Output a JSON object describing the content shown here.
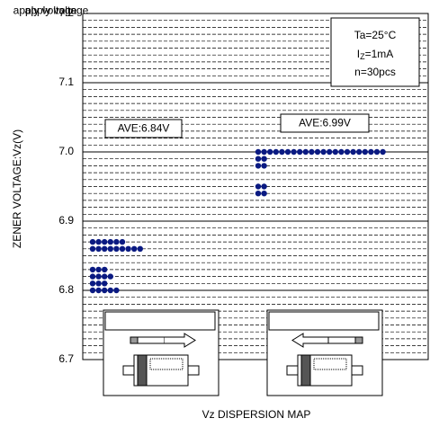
{
  "chart_data": {
    "type": "dotplot",
    "x_label": "Vz DISPERSION MAP",
    "y_label": "ZENER VOLTAGE:Vz(V)",
    "ylim": [
      6.7,
      7.2
    ],
    "yticks": [
      6.7,
      6.8,
      6.9,
      {
        "value": 7.0,
        "label": "7.0"
      },
      7.1,
      7.2
    ],
    "grid": true,
    "minor_grid": 0.01,
    "conditions": {
      "ta": "Ta=25°C",
      "iz": [
        "I",
        "Z",
        "=1mA"
      ],
      "n": "n=30pcs"
    },
    "series": [
      {
        "name": "AVE:6.84V",
        "color": "#0a1a82",
        "diagram": "apply voltage",
        "values": [
          6.87,
          6.87,
          6.87,
          6.87,
          6.87,
          6.87,
          6.86,
          6.86,
          6.86,
          6.86,
          6.86,
          6.86,
          6.86,
          6.86,
          6.86,
          6.83,
          6.83,
          6.83,
          6.82,
          6.82,
          6.82,
          6.82,
          6.81,
          6.81,
          6.81,
          6.8,
          6.8,
          6.8,
          6.8,
          6.8
        ]
      },
      {
        "name": "AVE:6.99V",
        "color": "#0a1a82",
        "diagram": "apply voltage",
        "values": [
          7.0,
          7.0,
          7.0,
          7.0,
          7.0,
          7.0,
          7.0,
          7.0,
          7.0,
          7.0,
          7.0,
          7.0,
          7.0,
          7.0,
          7.0,
          7.0,
          7.0,
          7.0,
          7.0,
          7.0,
          7.0,
          7.0,
          6.99,
          6.99,
          6.98,
          6.98,
          6.95,
          6.95,
          6.94,
          6.94
        ]
      }
    ]
  }
}
